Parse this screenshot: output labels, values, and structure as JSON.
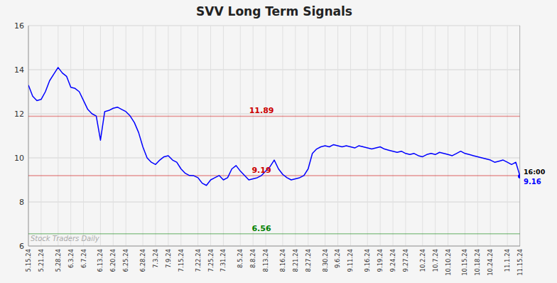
{
  "chart_data": {
    "type": "line",
    "title": "SVV Long Term Signals",
    "color": "blue",
    "grid": true,
    "ylim": [
      6,
      16
    ],
    "yticks": [
      6,
      8,
      10,
      12,
      14,
      16
    ],
    "categories": [
      "5.15.24",
      null,
      null,
      "5.21.24",
      null,
      null,
      null,
      "5.28.24",
      null,
      null,
      "6.3.24",
      null,
      null,
      "6.7.24",
      null,
      null,
      null,
      "6.13.24",
      null,
      null,
      "6.20.24",
      null,
      null,
      "6.25.24",
      null,
      null,
      null,
      "6.28.24",
      null,
      null,
      "7.3.24",
      null,
      null,
      "7.9.24",
      null,
      null,
      "7.15.24",
      null,
      null,
      null,
      "7.22.24",
      null,
      null,
      "7.25.24",
      null,
      null,
      "7.31.24",
      null,
      null,
      null,
      "8.5.24",
      null,
      null,
      "8.8.24",
      null,
      null,
      "8.13.24",
      null,
      null,
      null,
      "8.16.24",
      null,
      null,
      "8.21.24",
      null,
      null,
      "8.27.24",
      null,
      null,
      null,
      "8.30.24",
      null,
      null,
      "9.6.24",
      null,
      null,
      "9.11.24",
      null,
      null,
      null,
      "9.16.24",
      null,
      null,
      "9.19.24",
      null,
      null,
      "9.24.24",
      null,
      null,
      "9.27.24",
      null,
      null,
      null,
      "10.2.24",
      null,
      null,
      "10.7.24",
      null,
      null,
      "10.10.24",
      null,
      null,
      null,
      "10.15.24",
      null,
      null,
      "10.18.24",
      null,
      null,
      "10.24.24",
      null,
      null,
      null,
      "11.1.24",
      null,
      null,
      "11.15.24"
    ],
    "values": [
      13.3,
      12.8,
      12.6,
      12.65,
      13.0,
      13.5,
      13.8,
      14.1,
      13.85,
      13.7,
      13.2,
      13.15,
      13.0,
      12.6,
      12.2,
      12.0,
      11.9,
      10.8,
      12.1,
      12.15,
      12.25,
      12.3,
      12.2,
      12.1,
      11.9,
      11.6,
      11.15,
      10.5,
      10.0,
      9.8,
      9.7,
      9.9,
      10.05,
      10.1,
      9.9,
      9.8,
      9.5,
      9.3,
      9.2,
      9.19,
      9.1,
      8.85,
      8.75,
      9.0,
      9.1,
      9.2,
      9.0,
      9.1,
      9.5,
      9.65,
      9.4,
      9.2,
      9.0,
      9.05,
      9.1,
      9.2,
      9.4,
      9.6,
      9.9,
      9.5,
      9.25,
      9.1,
      9.0,
      9.05,
      9.1,
      9.2,
      9.5,
      10.2,
      10.4,
      10.5,
      10.55,
      10.5,
      10.6,
      10.55,
      10.5,
      10.55,
      10.5,
      10.45,
      10.55,
      10.5,
      10.45,
      10.4,
      10.45,
      10.5,
      10.4,
      10.35,
      10.3,
      10.25,
      10.3,
      10.2,
      10.15,
      10.2,
      10.1,
      10.05,
      10.15,
      10.2,
      10.15,
      10.25,
      10.2,
      10.15,
      10.1,
      10.2,
      10.3,
      10.2,
      10.15,
      10.1,
      10.05,
      10.0,
      9.95,
      9.9,
      9.8,
      9.85,
      9.9,
      9.8,
      9.7,
      9.8,
      9.16
    ],
    "reference_lines": [
      {
        "value": 11.89,
        "color": "#cc0000"
      },
      {
        "value": 9.19,
        "color": "#cc0000"
      },
      {
        "value": 6.56,
        "color": "#008000"
      }
    ],
    "end_label": {
      "time": "16:00",
      "price": "9.16"
    },
    "watermark": "Stock Traders Daily"
  }
}
